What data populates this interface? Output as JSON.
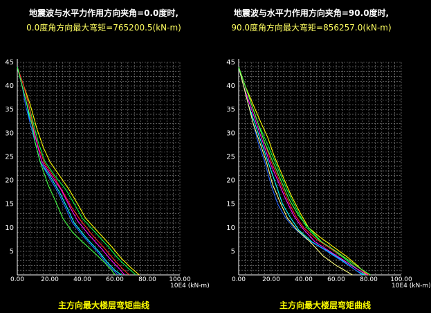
{
  "colors": {
    "background": "#000000",
    "grid": "#8c8c8c",
    "axis": "#ffffff",
    "tick_label": "#ffffff",
    "title_line1": "#ffffff",
    "title_line2": "#ffff60",
    "caption": "#ffff00"
  },
  "chart_data": [
    {
      "type": "line",
      "title_line1": "地震波与水平力作用方向夹角=0.0度时,",
      "title_line2": "0.0度角方向最大弯矩=765200.5(kN-m)",
      "unit_label": "10E4 (kN-m)",
      "caption": "主方向最大楼层弯矩曲线",
      "xlim": [
        0,
        100
      ],
      "ylim": [
        0,
        45
      ],
      "x_ticks": [
        "0.00",
        "20.00",
        "40.00",
        "60.00",
        "80.00",
        "100.00"
      ],
      "y_ticks": [
        "5",
        "10",
        "15",
        "20",
        "25",
        "30",
        "35",
        "40",
        "45"
      ],
      "grid": true,
      "series": [
        {
          "color": "#ffff00",
          "points": [
            [
              0,
              44
            ],
            [
              4,
              40
            ],
            [
              8,
              36
            ],
            [
              12,
              31
            ],
            [
              16,
              27
            ],
            [
              20,
              24
            ],
            [
              26,
              21
            ],
            [
              32,
              18
            ],
            [
              38,
              14.5
            ],
            [
              42,
              12
            ],
            [
              50,
              9
            ],
            [
              58,
              6
            ],
            [
              64,
              3.5
            ],
            [
              70,
              1.5
            ],
            [
              75,
              0
            ]
          ]
        },
        {
          "color": "#00ff40",
          "points": [
            [
              0,
              44
            ],
            [
              4,
              40
            ],
            [
              7,
              36
            ],
            [
              10,
              32
            ],
            [
              13,
              28
            ],
            [
              17,
              24
            ],
            [
              23,
              21
            ],
            [
              30,
              18
            ],
            [
              36,
              14.5
            ],
            [
              40,
              12
            ],
            [
              48,
              9
            ],
            [
              56,
              6
            ],
            [
              62,
              3.5
            ],
            [
              68,
              1.5
            ],
            [
              73,
              0
            ]
          ]
        },
        {
          "color": "#ff2020",
          "points": [
            [
              0,
              44
            ],
            [
              4,
              40
            ],
            [
              7,
              36
            ],
            [
              10,
              31
            ],
            [
              13,
              27
            ],
            [
              17,
              23.5
            ],
            [
              23,
              20.5
            ],
            [
              29,
              17
            ],
            [
              34,
              14
            ],
            [
              39,
              11.5
            ],
            [
              46,
              8.5
            ],
            [
              54,
              5.5
            ],
            [
              60,
              3
            ],
            [
              65,
              1.2
            ],
            [
              69,
              0
            ]
          ]
        },
        {
          "color": "#ff00ff",
          "points": [
            [
              0,
              44
            ],
            [
              3,
              40
            ],
            [
              6,
              36
            ],
            [
              9,
              32
            ],
            [
              12,
              28
            ],
            [
              15,
              24
            ],
            [
              21,
              21
            ],
            [
              27,
              18
            ],
            [
              33,
              14
            ],
            [
              37,
              11.5
            ],
            [
              44,
              8.5
            ],
            [
              52,
              5.5
            ],
            [
              58,
              3
            ],
            [
              63,
              1.2
            ],
            [
              66,
              0
            ]
          ]
        },
        {
          "color": "#00ffff",
          "points": [
            [
              0,
              44
            ],
            [
              3,
              40
            ],
            [
              6,
              36
            ],
            [
              8,
              32
            ],
            [
              11,
              28
            ],
            [
              14,
              24
            ],
            [
              20,
              21
            ],
            [
              26,
              17.5
            ],
            [
              31,
              14
            ],
            [
              35,
              11
            ],
            [
              42,
              8
            ],
            [
              50,
              5
            ],
            [
              55,
              2.8
            ],
            [
              60,
              1
            ],
            [
              64,
              0
            ]
          ]
        },
        {
          "color": "#2060ff",
          "points": [
            [
              0,
              44
            ],
            [
              3,
              40
            ],
            [
              5,
              36
            ],
            [
              8,
              32
            ],
            [
              11,
              28
            ],
            [
              14,
              24
            ],
            [
              19,
              21
            ],
            [
              25,
              17.5
            ],
            [
              30,
              14
            ],
            [
              34,
              11
            ],
            [
              41,
              8
            ],
            [
              49,
              5
            ],
            [
              54,
              2.8
            ],
            [
              59,
              1
            ],
            [
              62,
              0
            ]
          ]
        },
        {
          "color": "#40ff40",
          "points": [
            [
              0,
              44
            ],
            [
              3,
              40
            ],
            [
              6,
              36
            ],
            [
              9,
              32
            ],
            [
              11,
              28
            ],
            [
              14,
              24
            ],
            [
              19,
              19
            ],
            [
              23,
              16
            ],
            [
              28,
              12
            ],
            [
              34,
              9
            ],
            [
              40,
              7
            ],
            [
              48,
              4.5
            ],
            [
              54,
              2.5
            ],
            [
              58,
              1
            ],
            [
              60,
              0
            ]
          ]
        }
      ]
    },
    {
      "type": "line",
      "title_line1": "地震波与水平力作用方向夹角=90.0度时,",
      "title_line2": "90.0度角方向最大弯矩=856257.0(kN-m)",
      "unit_label": "10E4 (kN-m)",
      "caption": "主方向最大楼层弯矩曲线",
      "xlim": [
        0,
        100
      ],
      "ylim": [
        0,
        45
      ],
      "x_ticks": [
        "0.00",
        "20.00",
        "40.00",
        "60.00",
        "80.00",
        "100.00"
      ],
      "y_ticks": [
        "5",
        "10",
        "15",
        "20",
        "25",
        "30",
        "35",
        "40",
        "45"
      ],
      "grid": true,
      "series": [
        {
          "color": "#ffff00",
          "points": [
            [
              0,
              44
            ],
            [
              4,
              40
            ],
            [
              9,
              36
            ],
            [
              14,
              32
            ],
            [
              18,
              29
            ],
            [
              22,
              25
            ],
            [
              27,
              21
            ],
            [
              32,
              17
            ],
            [
              38,
              13
            ],
            [
              43,
              10
            ],
            [
              50,
              8
            ],
            [
              58,
              6
            ],
            [
              66,
              4
            ],
            [
              73,
              2
            ],
            [
              79,
              0
            ]
          ]
        },
        {
          "color": "#00ff40",
          "points": [
            [
              0,
              44
            ],
            [
              4,
              40
            ],
            [
              8,
              36
            ],
            [
              12,
              32
            ],
            [
              16,
              29
            ],
            [
              21,
              25
            ],
            [
              26,
              21
            ],
            [
              31,
              17
            ],
            [
              37,
              13
            ],
            [
              42,
              10
            ],
            [
              49,
              7.5
            ],
            [
              57,
              5.5
            ],
            [
              65,
              3.5
            ],
            [
              72,
              1.5
            ],
            [
              78,
              0
            ]
          ]
        },
        {
          "color": "#ff2020",
          "points": [
            [
              0,
              44
            ],
            [
              4,
              40
            ],
            [
              8,
              36
            ],
            [
              12,
              32
            ],
            [
              16,
              28
            ],
            [
              20,
              24
            ],
            [
              25,
              20
            ],
            [
              30,
              16
            ],
            [
              35,
              12.5
            ],
            [
              40,
              10
            ],
            [
              48,
              7.5
            ],
            [
              57,
              5.5
            ],
            [
              66,
              3.5
            ],
            [
              74,
              1.5
            ],
            [
              80,
              0
            ]
          ]
        },
        {
          "color": "#ff00ff",
          "points": [
            [
              0,
              44
            ],
            [
              3,
              40
            ],
            [
              7,
              36
            ],
            [
              11,
              32
            ],
            [
              15,
              28
            ],
            [
              19,
              24
            ],
            [
              24,
              20
            ],
            [
              29,
              16
            ],
            [
              34,
              12.5
            ],
            [
              39,
              10
            ],
            [
              47,
              7
            ],
            [
              56,
              5
            ],
            [
              65,
              3
            ],
            [
              73,
              1.2
            ],
            [
              79,
              0
            ]
          ]
        },
        {
          "color": "#00ffff",
          "points": [
            [
              0,
              44
            ],
            [
              3,
              40
            ],
            [
              6,
              36
            ],
            [
              10,
              32
            ],
            [
              14,
              28
            ],
            [
              18,
              24
            ],
            [
              23,
              19
            ],
            [
              27,
              15
            ],
            [
              32,
              12
            ],
            [
              37,
              9.5
            ],
            [
              45,
              7
            ],
            [
              55,
              5
            ],
            [
              64,
              3
            ],
            [
              72,
              1
            ],
            [
              77,
              0
            ]
          ]
        },
        {
          "color": "#2060ff",
          "points": [
            [
              0,
              44
            ],
            [
              3,
              40
            ],
            [
              6,
              36
            ],
            [
              9,
              32
            ],
            [
              12,
              28
            ],
            [
              16,
              24
            ],
            [
              20,
              19
            ],
            [
              24,
              15
            ],
            [
              29,
              12
            ],
            [
              34,
              10
            ],
            [
              42,
              7.5
            ],
            [
              52,
              5.5
            ],
            [
              61,
              3.5
            ],
            [
              70,
              1.5
            ],
            [
              76,
              0
            ]
          ]
        },
        {
          "color": "#ffff80",
          "points": [
            [
              0,
              44
            ],
            [
              3,
              40
            ],
            [
              6,
              36
            ],
            [
              9,
              32
            ],
            [
              13,
              28
            ],
            [
              17,
              24
            ],
            [
              21,
              19
            ],
            [
              26,
              15
            ],
            [
              30,
              12
            ],
            [
              36,
              9.5
            ],
            [
              44,
              7
            ],
            [
              52,
              4
            ],
            [
              60,
              2
            ],
            [
              66,
              0.8
            ],
            [
              70,
              0
            ]
          ]
        },
        {
          "color": "#40ff40",
          "points": [
            [
              0,
              44
            ],
            [
              4,
              40
            ],
            [
              8,
              36
            ],
            [
              12,
              32
            ],
            [
              16,
              28
            ],
            [
              21,
              24
            ],
            [
              26,
              20
            ],
            [
              31,
              16
            ],
            [
              37,
              12.5
            ],
            [
              43,
              10
            ],
            [
              51,
              7
            ],
            [
              60,
              5
            ],
            [
              68,
              3
            ],
            [
              75,
              1.3
            ],
            [
              81,
              0
            ]
          ]
        }
      ]
    }
  ]
}
